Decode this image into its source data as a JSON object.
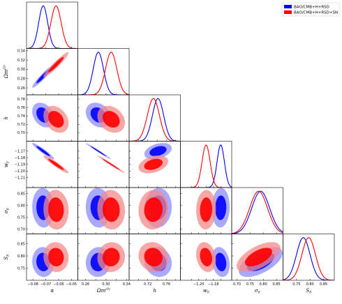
{
  "chart_data": {
    "type": "corner-plot",
    "params": [
      {
        "id": "alpha",
        "label": "α",
        "range": [
          -0.085,
          -0.045
        ],
        "ticks": [
          -0.08,
          -0.07,
          -0.06,
          -0.05
        ],
        "tick_labels": [
          "−0.08",
          "−0.07",
          "−0.06",
          "−0.05"
        ]
      },
      {
        "id": "omega",
        "label": "Ωm",
        "label_sup": "(0)",
        "range": [
          0.245,
          0.345
        ],
        "ticks": [
          0.26,
          0.28,
          0.3,
          0.32,
          0.34
        ],
        "tick_labels": [
          "0.26",
          "0.28",
          "0.30",
          "0.32",
          "0.34"
        ],
        "x_tick_labels": [
          "0.26",
          "",
          "0.30",
          "",
          "0.34"
        ]
      },
      {
        "id": "h",
        "label": "h",
        "range": [
          0.68,
          0.79
        ],
        "ticks": [
          0.7,
          0.72,
          0.74,
          0.76,
          0.78
        ],
        "tick_labels": [
          "0.70",
          "0.72",
          "0.74",
          "0.76",
          "0.78"
        ],
        "x_tick_labels": [
          "",
          "0.72",
          "",
          "0.76",
          ""
        ]
      },
      {
        "id": "w0",
        "label": "w0",
        "label_sub": "0C",
        "range": [
          -1.225,
          -1.155
        ],
        "ticks": [
          -1.21,
          -1.2,
          -1.19,
          -1.18,
          -1.17
        ],
        "tick_labels": [
          "−1.21",
          "−1.20",
          "−1.19",
          "−1.18",
          "−1.17"
        ],
        "x_tick_labels": [
          "",
          "−1.20",
          "",
          "−1.18",
          ""
        ]
      },
      {
        "id": "sigma8",
        "label": "σ8",
        "range": [
          0.68,
          0.875
        ],
        "ticks": [
          0.7,
          0.75,
          0.8,
          0.85
        ],
        "tick_labels": [
          "0.70",
          "0.75",
          "0.80",
          "0.85"
        ]
      },
      {
        "id": "S8",
        "label": "S8",
        "range": [
          0.7,
          0.89
        ],
        "ticks": [
          0.75,
          0.8,
          0.85
        ],
        "tick_labels": [
          "0.75",
          "0.80",
          "0.85"
        ]
      }
    ],
    "series": [
      {
        "name": "BAO/CMB+H+RSD",
        "color": "#0000ff",
        "light": "#8c8cff",
        "mean": [
          -0.072,
          0.285,
          0.742,
          -1.17,
          0.79,
          0.775
        ],
        "sigma": [
          0.0035,
          0.01,
          0.012,
          0.005,
          0.034,
          0.025
        ]
      },
      {
        "name": "BAO/CMB+H+RSD+SN",
        "color": "#ff0000",
        "light": "#f58a8a",
        "mean": [
          -0.062,
          0.31,
          0.732,
          -1.19,
          0.782,
          0.795
        ],
        "sigma": [
          0.004,
          0.011,
          0.013,
          0.0055,
          0.034,
          0.025
        ]
      }
    ],
    "correlations": {
      "1-0": 0.95,
      "2-0": -0.3,
      "2-1": -0.25,
      "3-0": -0.95,
      "3-1": -0.99,
      "3-2": 0.35,
      "4-0": -0.05,
      "4-1": -0.05,
      "4-2": 0.05,
      "4-3": 0.05,
      "5-0": -0.05,
      "5-1": 0.05,
      "5-2": -0.1,
      "5-3": -0.2,
      "5-4": 0.6
    },
    "legend": "top-right",
    "grid": false
  }
}
